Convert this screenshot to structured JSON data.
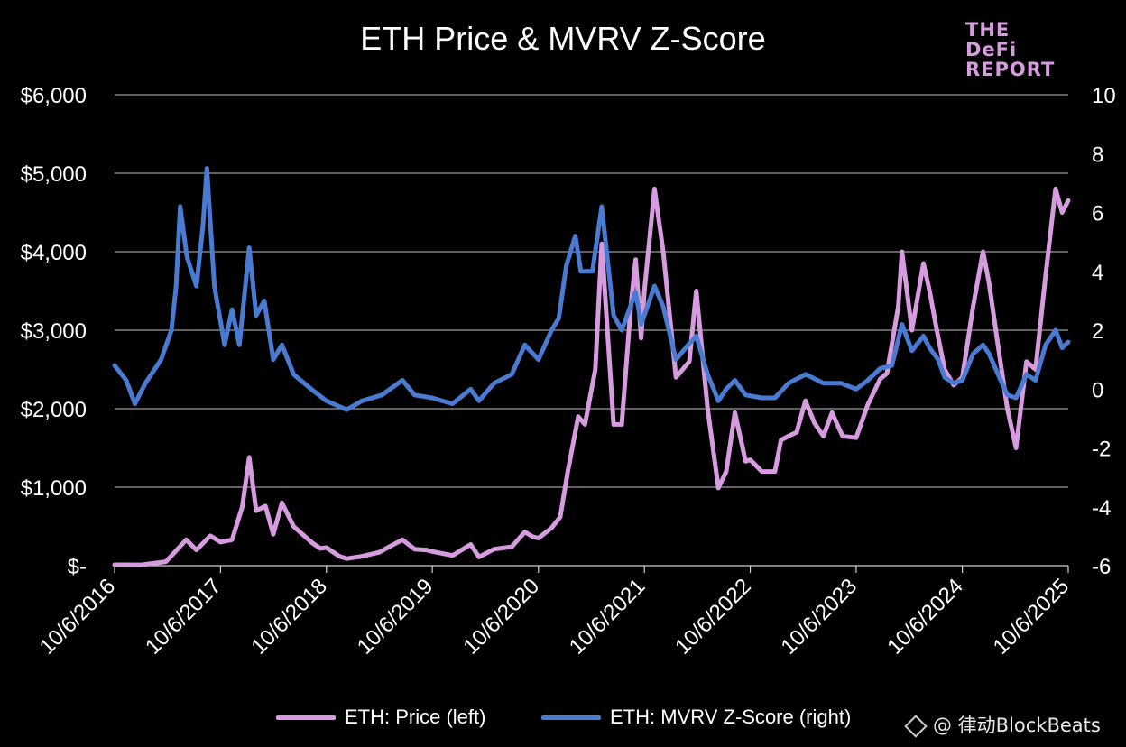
{
  "chart_data": {
    "type": "line",
    "title": "ETH Price & MVRV Z-Score",
    "logo_text": [
      "THE DeFi",
      "REPORT"
    ],
    "x_ticks": [
      "10/6/2016",
      "10/6/2017",
      "10/6/2018",
      "10/6/2019",
      "10/6/2020",
      "10/6/2021",
      "10/6/2022",
      "10/6/2023",
      "10/6/2024",
      "10/6/2025"
    ],
    "y_left": {
      "ticks": [
        "$-",
        "$1,000",
        "$2,000",
        "$3,000",
        "$4,000",
        "$5,000",
        "$6,000"
      ],
      "range": [
        0,
        6000
      ]
    },
    "y_right": {
      "ticks": [
        "-6",
        "-4",
        "-2",
        "0",
        "2",
        "4",
        "6",
        "8",
        "10"
      ],
      "range": [
        -6,
        10
      ]
    },
    "grid": true,
    "legend_position": "bottom",
    "series": [
      {
        "name": "ETH: Price (left)",
        "axis": "left",
        "color": "#d79be0",
        "points": [
          [
            "2016-10-06",
            12
          ],
          [
            "2017-01-06",
            10
          ],
          [
            "2017-04-01",
            50
          ],
          [
            "2017-06-10",
            330
          ],
          [
            "2017-07-15",
            200
          ],
          [
            "2017-09-01",
            380
          ],
          [
            "2017-10-06",
            300
          ],
          [
            "2017-11-15",
            330
          ],
          [
            "2017-12-20",
            750
          ],
          [
            "2018-01-13",
            1380
          ],
          [
            "2018-02-06",
            700
          ],
          [
            "2018-03-10",
            760
          ],
          [
            "2018-04-06",
            400
          ],
          [
            "2018-05-06",
            800
          ],
          [
            "2018-06-15",
            500
          ],
          [
            "2018-08-15",
            300
          ],
          [
            "2018-09-15",
            220
          ],
          [
            "2018-10-06",
            230
          ],
          [
            "2018-11-20",
            120
          ],
          [
            "2018-12-15",
            90
          ],
          [
            "2019-02-06",
            120
          ],
          [
            "2019-04-06",
            170
          ],
          [
            "2019-05-15",
            250
          ],
          [
            "2019-06-25",
            330
          ],
          [
            "2019-08-06",
            210
          ],
          [
            "2019-09-15",
            200
          ],
          [
            "2019-10-06",
            180
          ],
          [
            "2019-12-15",
            130
          ],
          [
            "2020-02-15",
            270
          ],
          [
            "2020-03-15",
            110
          ],
          [
            "2020-05-06",
            210
          ],
          [
            "2020-07-06",
            240
          ],
          [
            "2020-08-20",
            430
          ],
          [
            "2020-09-15",
            370
          ],
          [
            "2020-10-06",
            350
          ],
          [
            "2020-11-20",
            480
          ],
          [
            "2020-12-20",
            620
          ],
          [
            "2021-01-15",
            1200
          ],
          [
            "2021-02-20",
            1900
          ],
          [
            "2021-03-15",
            1800
          ],
          [
            "2021-04-20",
            2500
          ],
          [
            "2021-05-12",
            4100
          ],
          [
            "2021-06-22",
            1800
          ],
          [
            "2021-07-20",
            1800
          ],
          [
            "2021-08-20",
            3300
          ],
          [
            "2021-09-06",
            3900
          ],
          [
            "2021-09-25",
            2900
          ],
          [
            "2021-10-06",
            3500
          ],
          [
            "2021-11-10",
            4800
          ],
          [
            "2021-12-10",
            4000
          ],
          [
            "2022-01-23",
            2400
          ],
          [
            "2022-03-10",
            2600
          ],
          [
            "2022-04-03",
            3500
          ],
          [
            "2022-05-12",
            2000
          ],
          [
            "2022-06-18",
            990
          ],
          [
            "2022-07-15",
            1200
          ],
          [
            "2022-08-14",
            1950
          ],
          [
            "2022-09-20",
            1330
          ],
          [
            "2022-10-06",
            1350
          ],
          [
            "2022-11-15",
            1200
          ],
          [
            "2022-12-30",
            1200
          ],
          [
            "2023-01-20",
            1600
          ],
          [
            "2023-02-15",
            1650
          ],
          [
            "2023-03-15",
            1700
          ],
          [
            "2023-04-14",
            2100
          ],
          [
            "2023-05-15",
            1820
          ],
          [
            "2023-06-15",
            1650
          ],
          [
            "2023-07-15",
            1950
          ],
          [
            "2023-08-20",
            1650
          ],
          [
            "2023-10-06",
            1630
          ],
          [
            "2023-11-15",
            2050
          ],
          [
            "2023-12-28",
            2380
          ],
          [
            "2024-01-20",
            2450
          ],
          [
            "2024-02-28",
            3300
          ],
          [
            "2024-03-12",
            4000
          ],
          [
            "2024-04-15",
            3000
          ],
          [
            "2024-05-25",
            3850
          ],
          [
            "2024-06-15",
            3500
          ],
          [
            "2024-07-10",
            3000
          ],
          [
            "2024-08-06",
            2500
          ],
          [
            "2024-09-06",
            2300
          ],
          [
            "2024-10-06",
            2400
          ],
          [
            "2024-11-12",
            3300
          ],
          [
            "2024-12-16",
            4000
          ],
          [
            "2025-01-06",
            3600
          ],
          [
            "2025-02-06",
            2800
          ],
          [
            "2025-03-10",
            2000
          ],
          [
            "2025-04-09",
            1500
          ],
          [
            "2025-05-15",
            2600
          ],
          [
            "2025-06-15",
            2500
          ],
          [
            "2025-07-20",
            3700
          ],
          [
            "2025-08-23",
            4800
          ],
          [
            "2025-09-15",
            4500
          ],
          [
            "2025-10-06",
            4650
          ]
        ]
      },
      {
        "name": "ETH: MVRV Z-Score (right)",
        "axis": "right",
        "color": "#4a7bd3",
        "points": [
          [
            "2016-10-06",
            0.8
          ],
          [
            "2016-11-15",
            0.3
          ],
          [
            "2016-12-15",
            -0.5
          ],
          [
            "2017-01-20",
            0.2
          ],
          [
            "2017-03-15",
            1.0
          ],
          [
            "2017-04-20",
            2.0
          ],
          [
            "2017-05-06",
            3.5
          ],
          [
            "2017-05-20",
            6.2
          ],
          [
            "2017-06-12",
            4.5
          ],
          [
            "2017-07-15",
            3.5
          ],
          [
            "2017-08-06",
            5.5
          ],
          [
            "2017-08-20",
            7.5
          ],
          [
            "2017-09-15",
            3.5
          ],
          [
            "2017-10-20",
            1.5
          ],
          [
            "2017-11-15",
            2.7
          ],
          [
            "2017-12-10",
            1.5
          ],
          [
            "2018-01-13",
            4.8
          ],
          [
            "2018-02-06",
            2.5
          ],
          [
            "2018-03-06",
            3.0
          ],
          [
            "2018-04-06",
            1.0
          ],
          [
            "2018-05-06",
            1.5
          ],
          [
            "2018-06-15",
            0.5
          ],
          [
            "2018-08-15",
            0.0
          ],
          [
            "2018-10-06",
            -0.4
          ],
          [
            "2018-12-15",
            -0.7
          ],
          [
            "2019-02-06",
            -0.4
          ],
          [
            "2019-04-15",
            -0.2
          ],
          [
            "2019-06-25",
            0.3
          ],
          [
            "2019-08-06",
            -0.2
          ],
          [
            "2019-10-06",
            -0.3
          ],
          [
            "2019-12-15",
            -0.5
          ],
          [
            "2020-02-15",
            0.0
          ],
          [
            "2020-03-15",
            -0.4
          ],
          [
            "2020-05-06",
            0.2
          ],
          [
            "2020-07-06",
            0.5
          ],
          [
            "2020-08-20",
            1.5
          ],
          [
            "2020-10-06",
            1.0
          ],
          [
            "2020-11-20",
            2.0
          ],
          [
            "2020-12-15",
            2.4
          ],
          [
            "2021-01-10",
            4.2
          ],
          [
            "2021-02-10",
            5.2
          ],
          [
            "2021-03-01",
            4.0
          ],
          [
            "2021-04-10",
            4.0
          ],
          [
            "2021-05-12",
            6.2
          ],
          [
            "2021-06-22",
            2.5
          ],
          [
            "2021-07-20",
            2.0
          ],
          [
            "2021-09-06",
            3.3
          ],
          [
            "2021-09-25",
            2.2
          ],
          [
            "2021-11-10",
            3.5
          ],
          [
            "2021-12-10",
            2.8
          ],
          [
            "2022-01-23",
            1.0
          ],
          [
            "2022-03-06",
            1.5
          ],
          [
            "2022-04-03",
            1.8
          ],
          [
            "2022-05-12",
            0.5
          ],
          [
            "2022-06-18",
            -0.4
          ],
          [
            "2022-07-15",
            0.0
          ],
          [
            "2022-08-14",
            0.3
          ],
          [
            "2022-09-20",
            -0.2
          ],
          [
            "2022-11-15",
            -0.3
          ],
          [
            "2022-12-30",
            -0.3
          ],
          [
            "2023-02-15",
            0.2
          ],
          [
            "2023-04-15",
            0.5
          ],
          [
            "2023-06-15",
            0.2
          ],
          [
            "2023-08-15",
            0.2
          ],
          [
            "2023-10-06",
            0.0
          ],
          [
            "2023-11-15",
            0.3
          ],
          [
            "2023-12-28",
            0.7
          ],
          [
            "2024-02-06",
            0.8
          ],
          [
            "2024-03-12",
            2.2
          ],
          [
            "2024-04-15",
            1.3
          ],
          [
            "2024-05-25",
            1.8
          ],
          [
            "2024-06-15",
            1.4
          ],
          [
            "2024-07-15",
            1.0
          ],
          [
            "2024-08-06",
            0.4
          ],
          [
            "2024-09-06",
            0.2
          ],
          [
            "2024-10-06",
            0.3
          ],
          [
            "2024-11-12",
            1.2
          ],
          [
            "2024-12-16",
            1.5
          ],
          [
            "2025-01-06",
            1.2
          ],
          [
            "2025-02-06",
            0.5
          ],
          [
            "2025-03-10",
            -0.2
          ],
          [
            "2025-04-09",
            -0.3
          ],
          [
            "2025-05-15",
            0.5
          ],
          [
            "2025-06-15",
            0.3
          ],
          [
            "2025-07-20",
            1.5
          ],
          [
            "2025-08-23",
            2.0
          ],
          [
            "2025-09-15",
            1.4
          ],
          [
            "2025-10-06",
            1.6
          ]
        ]
      }
    ]
  },
  "watermark": "@ 律动BlockBeats"
}
